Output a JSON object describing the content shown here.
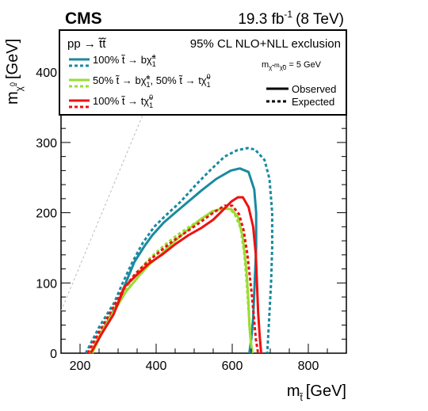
{
  "header": {
    "experiment": "CMS",
    "lumi": "19.3 fb",
    "lumi_exp": "-1",
    "energy": "(8 TeV)"
  },
  "legend": {
    "process_prefix": "pp → ",
    "process_stops": "t̃t̃",
    "exclusion_title": "95% CL NLO+NLL exclusion",
    "mass_diff_note": "m",
    "mass_diff_value": "= 5 GeV",
    "entries": [
      {
        "label": "100%  t̃ → bχ̃",
        "suffix_sup": "±",
        "suffix_sub": "1",
        "color": "#1a8aa0"
      },
      {
        "label": "50%  t̃ → bχ̃",
        "suffix_sup": "±",
        "suffix_sub": "1",
        "extra": ", 50%  t̃ → tχ̃",
        "extra_sup": "0",
        "extra_sub": "1",
        "color": "#99dd33"
      },
      {
        "label": "100%  t̃ → tχ̃",
        "suffix_sup": "0",
        "suffix_sub": "1",
        "color": "#ee1111"
      }
    ],
    "observed_label": "Observed",
    "expected_label": "Expected"
  },
  "chart_data": {
    "type": "line",
    "xlabel": "m",
    "xlabel_sub": "t̃",
    "xlabel_unit": "[GeV]",
    "ylabel": "m",
    "ylabel_sub": "χ̃",
    "ylabel_sub_sup": "0",
    "ylabel_unit": "[GeV]",
    "xlim": [
      150,
      900
    ],
    "ylim": [
      0,
      460
    ],
    "xticks": [
      200,
      400,
      600,
      800
    ],
    "yticks": [
      0,
      100,
      200,
      300,
      400
    ],
    "diagonal": {
      "color": "#bbbbbb",
      "points": [
        [
          150,
          60
        ],
        [
          400,
          385
        ]
      ]
    },
    "series": [
      {
        "group": 0,
        "style": "observed",
        "color": "#1a8aa0",
        "x": [
          230,
          262,
          300,
          320,
          343,
          370,
          390,
          420,
          452,
          485,
          520,
          558,
          596,
          620,
          643,
          658,
          663,
          663,
          659,
          655,
          650,
          645
        ],
        "y": [
          0,
          35,
          72,
          100,
          130,
          153,
          168,
          186,
          201,
          216,
          232,
          248,
          260,
          263,
          258,
          233,
          200,
          150,
          100,
          50,
          20,
          0
        ]
      },
      {
        "group": 0,
        "style": "expected",
        "color": "#1a8aa0",
        "x": [
          215,
          250,
          290,
          312,
          338,
          365,
          395,
          425,
          465,
          505,
          545,
          580,
          613,
          640,
          660,
          685,
          698,
          705,
          705,
          702,
          697,
          692
        ],
        "y": [
          0,
          37,
          72,
          100,
          130,
          157,
          180,
          196,
          216,
          240,
          262,
          280,
          289,
          292,
          290,
          275,
          248,
          200,
          150,
          100,
          50,
          0
        ]
      },
      {
        "group": 1,
        "style": "observed",
        "color": "#99dd33",
        "x": [
          232,
          260,
          290,
          320,
          355,
          385,
          415,
          450,
          482,
          515,
          548,
          575,
          598,
          615,
          628,
          637,
          642,
          645,
          648,
          653
        ],
        "y": [
          0,
          32,
          60,
          87,
          110,
          128,
          142,
          160,
          175,
          190,
          202,
          206,
          205,
          194,
          165,
          120,
          80,
          40,
          20,
          0
        ]
      },
      {
        "group": 1,
        "style": "expected",
        "color": "#99dd33",
        "x": [
          225,
          255,
          287,
          318,
          350,
          385,
          420,
          455,
          490,
          525,
          558,
          585,
          605,
          622,
          632,
          638,
          643,
          648,
          652
        ],
        "y": [
          0,
          32,
          62,
          90,
          115,
          136,
          153,
          168,
          181,
          193,
          203,
          207,
          200,
          178,
          140,
          100,
          60,
          25,
          0
        ]
      },
      {
        "group": 2,
        "style": "observed",
        "color": "#ee1111",
        "x": [
          228,
          256,
          288,
          318,
          350,
          382,
          415,
          450,
          485,
          518,
          550,
          578,
          598,
          615,
          628,
          643,
          655,
          662,
          665,
          668,
          672,
          676
        ],
        "y": [
          0,
          27,
          55,
          95,
          112,
          128,
          140,
          155,
          168,
          178,
          190,
          205,
          216,
          222,
          222,
          208,
          180,
          140,
          100,
          60,
          25,
          0
        ]
      },
      {
        "group": 2,
        "style": "expected",
        "color": "#ee1111",
        "x": [
          220,
          250,
          282,
          312,
          345,
          378,
          410,
          445,
          480,
          515,
          550,
          580,
          600,
          618,
          630,
          640,
          646,
          652,
          658,
          662,
          668
        ],
        "y": [
          0,
          30,
          60,
          90,
          113,
          130,
          145,
          160,
          173,
          186,
          200,
          210,
          210,
          198,
          175,
          140,
          110,
          80,
          45,
          20,
          0
        ]
      }
    ]
  }
}
